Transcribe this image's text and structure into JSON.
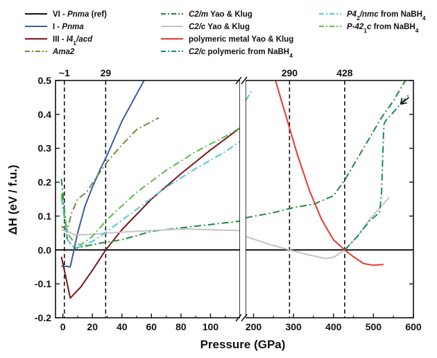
{
  "chart_data": {
    "type": "line",
    "xlabel": "Pressure (GPa)",
    "ylabel": "ΔH (eV / f.u.)",
    "ylim": [
      -0.2,
      0.5
    ],
    "x_segments": [
      {
        "range": [
          -5,
          120
        ],
        "ticks": [
          0,
          20,
          40,
          60,
          80,
          100
        ]
      },
      {
        "range": [
          180,
          600
        ],
        "ticks": [
          200,
          300,
          400,
          500,
          600
        ]
      }
    ],
    "y_ticks": [
      "-0.2",
      "-0.1",
      "0.0",
      "0.1",
      "0.2",
      "0.3",
      "0.4",
      "0.5"
    ],
    "x_tick_labels": [
      "0",
      "20",
      "40",
      "60",
      "80",
      "100",
      "200",
      "300",
      "400",
      "500",
      "600"
    ],
    "vlines": [
      {
        "x": 1,
        "label": "~1"
      },
      {
        "x": 29,
        "label": "29"
      },
      {
        "x": 290,
        "label": "290"
      },
      {
        "x": 428,
        "label": "428"
      }
    ],
    "legend_position": "top",
    "legend": [
      {
        "key": "vi",
        "label": "VI - ",
        "label_italic": "Pnma",
        "label_suffix": " (ref)"
      },
      {
        "key": "i",
        "label": "I - ",
        "label_italic": "Pnma",
        "label_suffix": ""
      },
      {
        "key": "iii",
        "label": "III - ",
        "label_italic": "I4",
        "label_sub": "1",
        "label_italic2": "/acd",
        "label_suffix": ""
      },
      {
        "key": "ama2",
        "label": "",
        "label_italic": "Ama2",
        "label_suffix": ""
      },
      {
        "key": "c2m",
        "label": "",
        "label_italic": "C2/m",
        "label_suffix": " Yao & Klug"
      },
      {
        "key": "c2c",
        "label": "",
        "label_italic": "C2/c",
        "label_suffix": " Yao & Klug"
      },
      {
        "key": "polymetal",
        "label": " polymeric metal Yao & Klug",
        "label_italic": "",
        "label_suffix": ""
      },
      {
        "key": "c2cpoly",
        "label": "",
        "label_italic": "C2/c",
        "label_suffix": " polymeric from NaBH",
        "label_sub2": "4"
      },
      {
        "key": "p42",
        "label": "",
        "label_italic": "P4",
        "label_sub": "2",
        "label_italic2": "/nmc",
        "label_suffix": " from NaBH",
        "label_sub2": "4"
      },
      {
        "key": "p421c",
        "label": "",
        "label_italic": "P-42",
        "label_sub": "1",
        "label_italic2": "c",
        "label_suffix": " from NaBH",
        "label_sub2": "4"
      }
    ],
    "series": [
      {
        "key": "vi",
        "color": "#111111",
        "dash": "",
        "segments": [
          [
            [
              -5,
              0
            ],
            [
              120,
              0
            ]
          ],
          [
            [
              180,
              0
            ],
            [
              600,
              0
            ]
          ]
        ]
      },
      {
        "key": "i",
        "color": "#3e5aa9",
        "dash": "",
        "segments": [
          [
            [
              -1,
              -0.048
            ],
            [
              2,
              -0.048
            ],
            [
              5,
              -0.05
            ],
            [
              10,
              0.05
            ],
            [
              15,
              0.13
            ],
            [
              20,
              0.185
            ],
            [
              25,
              0.235
            ],
            [
              30,
              0.28
            ],
            [
              35,
              0.33
            ],
            [
              40,
              0.38
            ],
            [
              45,
              0.42
            ],
            [
              50,
              0.46
            ],
            [
              55,
              0.5
            ]
          ]
        ]
      },
      {
        "key": "iii",
        "color": "#7a1618",
        "dash": "",
        "segments": [
          [
            [
              -1,
              -0.02
            ],
            [
              2,
              -0.08
            ],
            [
              5,
              -0.142
            ],
            [
              12,
              -0.11
            ],
            [
              20,
              -0.06
            ],
            [
              29,
              0.0
            ],
            [
              40,
              0.06
            ],
            [
              60,
              0.15
            ],
            [
              80,
              0.225
            ],
            [
              100,
              0.295
            ],
            [
              120,
              0.36
            ]
          ]
        ]
      },
      {
        "key": "ama2",
        "color": "#6f8a36",
        "dash": "10,4,2,4",
        "segments": [
          [
            [
              -1,
              0.07
            ],
            [
              3,
              0.06
            ],
            [
              6,
              0.11
            ],
            [
              10,
              0.15
            ],
            [
              16,
              0.17
            ],
            [
              22,
              0.21
            ],
            [
              30,
              0.26
            ],
            [
              40,
              0.31
            ],
            [
              50,
              0.355
            ],
            [
              65,
              0.39
            ]
          ]
        ]
      },
      {
        "key": "c2m",
        "color": "#1e8a3a",
        "dash": "10,4,2,4",
        "segments": [
          [
            [
              -1,
              0.21
            ],
            [
              3,
              0.03
            ],
            [
              8,
              0.005
            ],
            [
              14,
              0.01
            ],
            [
              25,
              0.02
            ],
            [
              40,
              0.03
            ],
            [
              60,
              0.055
            ],
            [
              80,
              0.065
            ],
            [
              100,
              0.075
            ],
            [
              120,
              0.085
            ]
          ],
          [
            [
              180,
              0.095
            ],
            [
              250,
              0.11
            ],
            [
              300,
              0.125
            ],
            [
              350,
              0.135
            ],
            [
              400,
              0.16
            ],
            [
              430,
              0.21
            ],
            [
              460,
              0.27
            ],
            [
              490,
              0.33
            ],
            [
              520,
              0.39
            ],
            [
              550,
              0.44
            ],
            [
              580,
              0.5
            ]
          ]
        ]
      },
      {
        "key": "c2c",
        "color": "#c4c4c4",
        "dash": "",
        "segments": [
          [
            [
              -1,
              0.06
            ],
            [
              3,
              0.055
            ],
            [
              8,
              0.045
            ],
            [
              15,
              0.045
            ],
            [
              30,
              0.05
            ],
            [
              50,
              0.055
            ],
            [
              80,
              0.062
            ],
            [
              100,
              0.06
            ],
            [
              120,
              0.057
            ]
          ],
          [
            [
              180,
              0.04
            ],
            [
              230,
              0.02
            ],
            [
              290,
              0.0
            ],
            [
              340,
              -0.015
            ],
            [
              380,
              -0.025
            ],
            [
              400,
              -0.022
            ],
            [
              428,
              0.0
            ],
            [
              460,
              0.04
            ],
            [
              490,
              0.09
            ],
            [
              520,
              0.13
            ],
            [
              540,
              0.155
            ]
          ]
        ]
      },
      {
        "key": "polymetal",
        "color": "#e8362c",
        "dash": "",
        "segments": [
          [
            [
              255,
              0.5
            ],
            [
              280,
              0.4
            ],
            [
              310,
              0.28
            ],
            [
              340,
              0.175
            ],
            [
              370,
              0.09
            ],
            [
              400,
              0.03
            ],
            [
              428,
              0.0
            ],
            [
              450,
              -0.02
            ],
            [
              475,
              -0.04
            ],
            [
              500,
              -0.045
            ],
            [
              525,
              -0.043
            ]
          ]
        ]
      },
      {
        "key": "c2cpoly",
        "color": "#15887a",
        "dash": "10,4,2,4",
        "segments": [
          [
            [
              428,
              0.0
            ],
            [
              460,
              0.04
            ],
            [
              490,
              0.085
            ],
            [
              515,
              0.11
            ],
            [
              520,
              0.16
            ],
            [
              526,
              0.37
            ],
            [
              530,
              0.38
            ],
            [
              560,
              0.42
            ],
            [
              590,
              0.46
            ]
          ]
        ]
      },
      {
        "key": "p42",
        "color": "#4fc4d8",
        "dash": "10,4,2,4",
        "segments": [
          [
            [
              -1,
              0.155
            ],
            [
              3,
              0.03
            ],
            [
              8,
              0.005
            ],
            [
              12,
              0.01
            ],
            [
              20,
              0.025
            ],
            [
              30,
              0.055
            ],
            [
              50,
              0.12
            ],
            [
              70,
              0.185
            ],
            [
              90,
              0.24
            ],
            [
              110,
              0.29
            ],
            [
              120,
              0.32
            ]
          ],
          [
            [
              180,
              0.44
            ],
            [
              195,
              0.47
            ]
          ]
        ]
      },
      {
        "key": "p421c",
        "color": "#57b946",
        "dash": "10,4,2,4",
        "segments": [
          [
            [
              -1,
              0.165
            ],
            [
              3,
              0.05
            ],
            [
              8,
              0.02
            ],
            [
              12,
              0.015
            ],
            [
              20,
              0.04
            ],
            [
              30,
              0.09
            ],
            [
              50,
              0.17
            ],
            [
              70,
              0.235
            ],
            [
              90,
              0.29
            ],
            [
              110,
              0.335
            ],
            [
              120,
              0.36
            ]
          ]
        ]
      }
    ]
  }
}
